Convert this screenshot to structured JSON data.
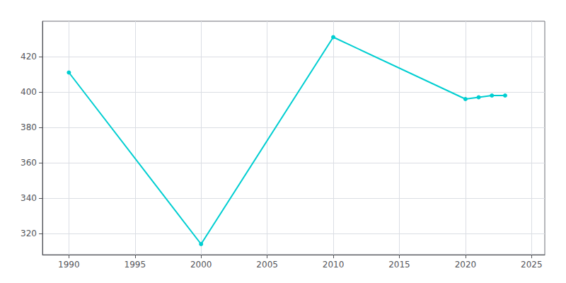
{
  "chart_data": {
    "type": "line",
    "x": [
      1990,
      2000,
      2010,
      2020,
      2021,
      2022,
      2023
    ],
    "values": [
      411,
      314,
      431,
      396,
      397,
      398,
      398
    ],
    "color": "#00CED1",
    "marker": "circle",
    "xlim": [
      1988,
      2026
    ],
    "ylim": [
      308,
      440
    ],
    "xticks": [
      1990,
      1995,
      2000,
      2005,
      2010,
      2015,
      2020,
      2025
    ],
    "yticks": [
      320,
      340,
      360,
      380,
      400,
      420
    ],
    "grid": true
  }
}
